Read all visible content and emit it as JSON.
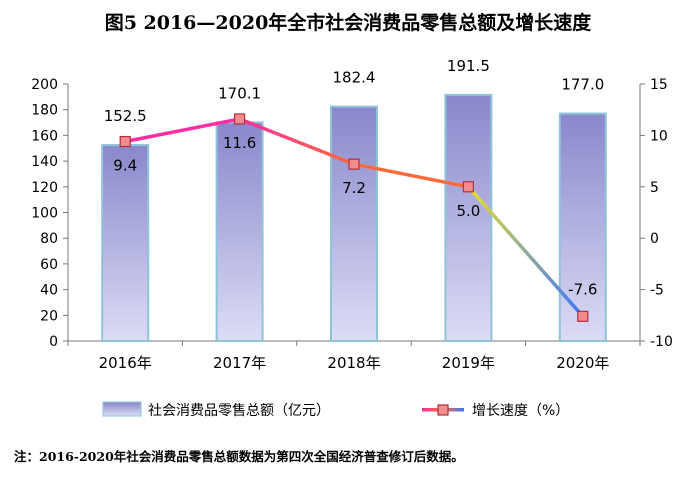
{
  "title": "图5 2016—2020年全市社会消费品零售总额及增长速度",
  "note": "注：2016-2020年社会消费品零售总额数据为第四次全国经济普查修订后数据。",
  "colors": {
    "bar_top": "#8888cc",
    "bar_bottom": "#dcdcf6",
    "bar_stroke": "#8fc4d8",
    "line_start": "#ff2ea0",
    "line_mid": "#ff6a3a",
    "line_yellow": "#e8e02a",
    "line_end": "#3a78ff",
    "marker_fill": "#f08c8c",
    "marker_stroke": "#b03040"
  },
  "chart_data": {
    "type": "bar+line",
    "categories": [
      "2016年",
      "2017年",
      "2018年",
      "2019年",
      "2020年"
    ],
    "series": [
      {
        "name": "社会消费品零售总额（亿元）",
        "type": "bar",
        "axis": "left",
        "values": [
          152.5,
          170.1,
          182.4,
          191.5,
          177.0
        ],
        "labels": [
          "152.5",
          "170.1",
          "182.4",
          "191.5",
          "177.0"
        ]
      },
      {
        "name": "增长速度（%）",
        "type": "line",
        "axis": "right",
        "values": [
          9.4,
          11.6,
          7.2,
          5.0,
          -7.6
        ],
        "labels": [
          "9.4",
          "11.6",
          "7.2",
          "5.0",
          "-7.6"
        ]
      }
    ],
    "y_left": {
      "min": 0,
      "max": 200,
      "step": 20,
      "ticks": [
        "0",
        "20",
        "40",
        "60",
        "80",
        "100",
        "120",
        "140",
        "160",
        "180",
        "200"
      ]
    },
    "y_right": {
      "min": -10,
      "max": 15,
      "step": 5,
      "ticks": [
        "-10",
        "-5",
        "0",
        "5",
        "10",
        "15"
      ]
    },
    "legend_position": "bottom",
    "grid": false
  }
}
